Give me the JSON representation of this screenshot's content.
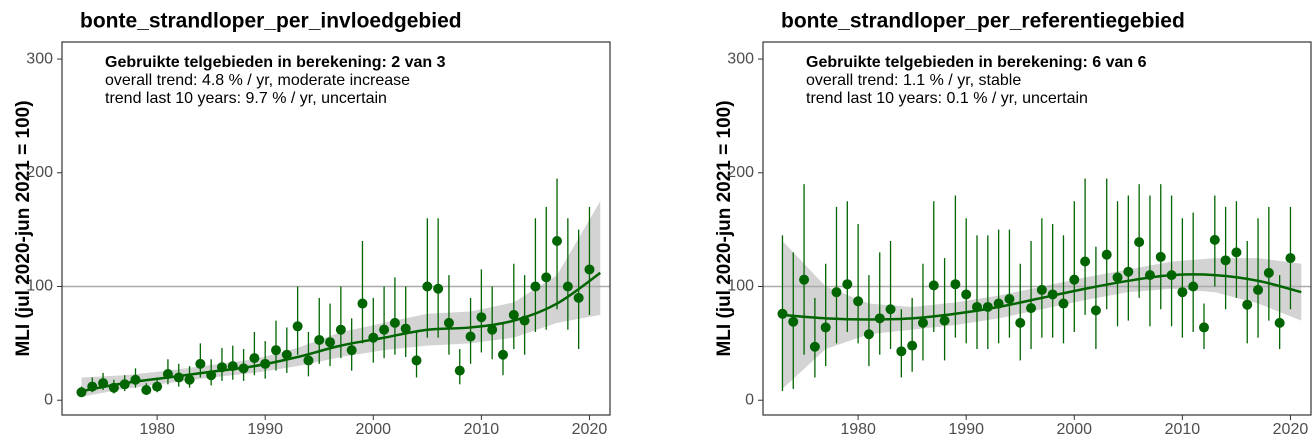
{
  "chart_data": [
    {
      "type": "scatter",
      "title": "bonte_strandloper_per_invloedgebied",
      "ylabel": "MLI (jul 2020-jun 2021 = 100)",
      "annotations": [
        "Gebruikte telgebieden in berekening: 2 van 3",
        "overall trend: 4.8 % / yr, moderate increase",
        "trend last 10 years: 9.7 % / yr, uncertain"
      ],
      "color": "#006400",
      "band_color": "#d3d3d3",
      "hline": 100,
      "xlim": [
        1971.2,
        2021.9
      ],
      "ylim": [
        -13,
        315
      ],
      "xticks": [
        1980,
        1990,
        2000,
        2010,
        2020
      ],
      "yticks": [
        0,
        100,
        200,
        300
      ],
      "x": [
        1973,
        1974,
        1975,
        1976,
        1977,
        1978,
        1979,
        1980,
        1981,
        1982,
        1983,
        1984,
        1985,
        1986,
        1987,
        1988,
        1989,
        1990,
        1991,
        1992,
        1993,
        1994,
        1995,
        1996,
        1997,
        1998,
        1999,
        2000,
        2001,
        2002,
        2003,
        2004,
        2005,
        2006,
        2007,
        2008,
        2009,
        2010,
        2011,
        2012,
        2013,
        2014,
        2015,
        2016,
        2017,
        2018,
        2019,
        2020
      ],
      "values": [
        7,
        12,
        15,
        11,
        14,
        18,
        9,
        12,
        23,
        20,
        18,
        32,
        22,
        29,
        30,
        28,
        37,
        32,
        44,
        40,
        65,
        35,
        53,
        51,
        62,
        44,
        85,
        55,
        62,
        68,
        63,
        35,
        100,
        98,
        68,
        26,
        56,
        73,
        62,
        40,
        75,
        70,
        100,
        108,
        140,
        100,
        90,
        115
      ],
      "lower": [
        4,
        7,
        9,
        6,
        8,
        11,
        5,
        7,
        14,
        12,
        11,
        20,
        13,
        17,
        18,
        17,
        22,
        19,
        26,
        24,
        40,
        21,
        32,
        30,
        37,
        26,
        50,
        33,
        37,
        40,
        38,
        20,
        55,
        55,
        40,
        14,
        32,
        42,
        36,
        22,
        45,
        40,
        60,
        62,
        80,
        62,
        45,
        75
      ],
      "upper": [
        12,
        20,
        24,
        18,
        22,
        28,
        15,
        20,
        36,
        32,
        30,
        50,
        36,
        46,
        48,
        45,
        60,
        52,
        70,
        64,
        100,
        60,
        90,
        85,
        100,
        72,
        140,
        90,
        100,
        108,
        100,
        60,
        160,
        160,
        110,
        45,
        90,
        115,
        100,
        68,
        120,
        110,
        160,
        170,
        195,
        160,
        150,
        170
      ],
      "trend": {
        "x": [
          1973,
          1977,
          1981,
          1985,
          1989,
          1993,
          1997,
          2001,
          2005,
          2009,
          2013,
          2017,
          2021
        ],
        "values": [
          8,
          15,
          20,
          25,
          30,
          38,
          48,
          55,
          62,
          64,
          70,
          85,
          112
        ],
        "lower": [
          3,
          10,
          15,
          20,
          24,
          30,
          38,
          44,
          48,
          50,
          55,
          68,
          75
        ],
        "upper": [
          20,
          22,
          26,
          31,
          36,
          46,
          60,
          68,
          76,
          78,
          86,
          110,
          175
        ]
      }
    },
    {
      "type": "scatter",
      "title": "bonte_strandloper_per_referentiegebied",
      "ylabel": "MLI (jul 2020-jun 2021 = 100)",
      "annotations": [
        "Gebruikte telgebieden in berekening: 6 van 6",
        "overall trend: 1.1 % / yr, stable",
        "trend last 10 years: 0.1 % / yr, uncertain"
      ],
      "color": "#006400",
      "band_color": "#d3d3d3",
      "hline": 100,
      "xlim": [
        1971.2,
        2021.9
      ],
      "ylim": [
        -13,
        315
      ],
      "xticks": [
        1980,
        1990,
        2000,
        2010,
        2020
      ],
      "yticks": [
        0,
        100,
        200,
        300
      ],
      "x": [
        1973,
        1974,
        1975,
        1976,
        1977,
        1978,
        1979,
        1980,
        1981,
        1982,
        1983,
        1984,
        1985,
        1986,
        1987,
        1988,
        1989,
        1990,
        1991,
        1992,
        1993,
        1994,
        1995,
        1996,
        1997,
        1998,
        1999,
        2000,
        2001,
        2002,
        2003,
        2004,
        2005,
        2006,
        2007,
        2008,
        2009,
        2010,
        2011,
        2012,
        2013,
        2014,
        2015,
        2016,
        2017,
        2018,
        2019,
        2020
      ],
      "values": [
        76,
        69,
        106,
        47,
        64,
        95,
        102,
        87,
        58,
        72,
        80,
        43,
        48,
        68,
        101,
        70,
        102,
        93,
        82,
        82,
        85,
        89,
        68,
        81,
        97,
        93,
        85,
        106,
        122,
        79,
        128,
        108,
        113,
        139,
        110,
        126,
        110,
        95,
        100,
        64,
        141,
        123,
        130,
        84,
        97,
        112,
        68,
        125
      ],
      "lower": [
        8,
        10,
        40,
        20,
        30,
        50,
        60,
        50,
        30,
        40,
        45,
        20,
        25,
        35,
        60,
        35,
        55,
        50,
        45,
        45,
        50,
        55,
        35,
        45,
        55,
        55,
        50,
        60,
        75,
        45,
        80,
        65,
        70,
        90,
        65,
        80,
        65,
        55,
        60,
        45,
        100,
        80,
        90,
        50,
        55,
        70,
        45,
        80
      ],
      "upper": [
        145,
        130,
        190,
        90,
        120,
        170,
        175,
        155,
        110,
        130,
        140,
        80,
        90,
        120,
        175,
        125,
        180,
        160,
        145,
        145,
        150,
        150,
        120,
        140,
        160,
        155,
        145,
        175,
        195,
        135,
        195,
        175,
        180,
        190,
        180,
        190,
        180,
        160,
        165,
        85,
        180,
        170,
        175,
        140,
        160,
        170,
        110,
        170
      ],
      "trend": {
        "x": [
          1973,
          1977,
          1981,
          1985,
          1989,
          1993,
          1997,
          2001,
          2005,
          2009,
          2013,
          2017,
          2021
        ],
        "values": [
          75,
          72,
          71,
          72,
          76,
          82,
          90,
          98,
          105,
          110,
          110,
          105,
          95
        ],
        "lower": [
          10,
          45,
          58,
          62,
          66,
          72,
          80,
          88,
          95,
          98,
          95,
          85,
          70
        ],
        "upper": [
          140,
          100,
          85,
          82,
          86,
          92,
          100,
          108,
          115,
          122,
          125,
          125,
          120
        ]
      }
    }
  ]
}
